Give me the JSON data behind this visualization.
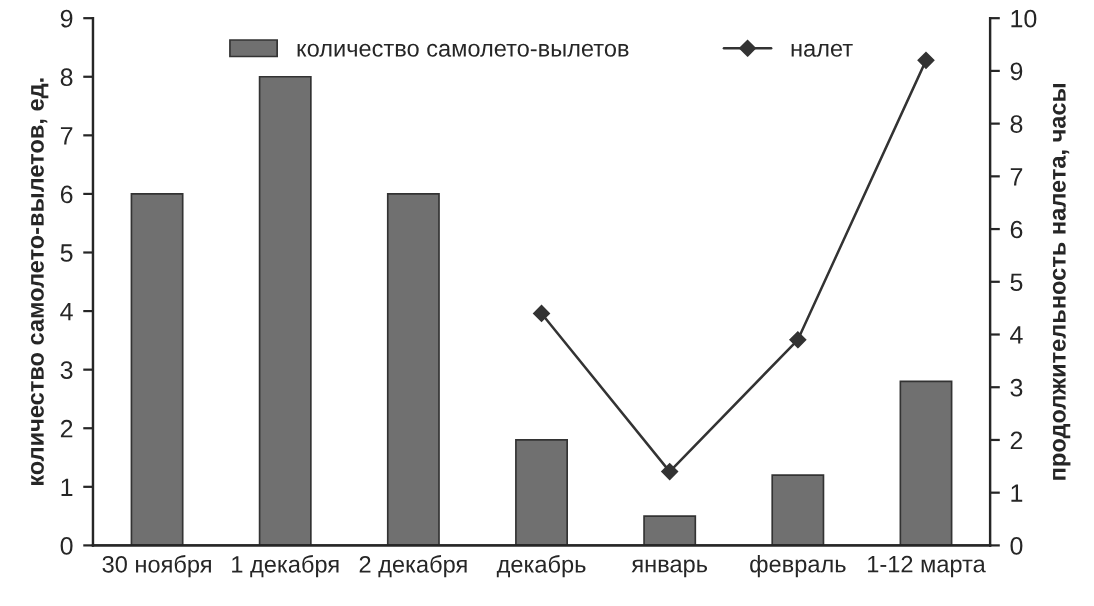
{
  "chart_data": {
    "type": "bar",
    "ylabel": "количество самолето-вылетов, ед.",
    "y2label": "продолжительность налета, часы",
    "categories": [
      "30 ноября",
      "1 декабря",
      "2 декабря",
      "декабрь",
      "январь",
      "февраль",
      "1-12 марта"
    ],
    "series": [
      {
        "name": "количество самолето-вылетов",
        "color": "#707070",
        "values": [
          6,
          8,
          6,
          1.8,
          0.5,
          1.2,
          2.8
        ]
      },
      {
        "name": "налет",
        "type": "line",
        "axis": "y2",
        "color": "#333333",
        "marker": "diamond",
        "values": [
          null,
          null,
          null,
          4.4,
          1.4,
          3.9,
          9.2
        ]
      }
    ],
    "ylim": [
      0,
      9
    ],
    "yticks": [
      0,
      1,
      2,
      3,
      4,
      5,
      6,
      7,
      8,
      9
    ],
    "y2lim": [
      0,
      10
    ],
    "y2ticks": [
      0,
      1,
      2,
      3,
      4,
      5,
      6,
      7,
      8,
      9,
      10
    ],
    "grid": false,
    "legend": "top"
  }
}
